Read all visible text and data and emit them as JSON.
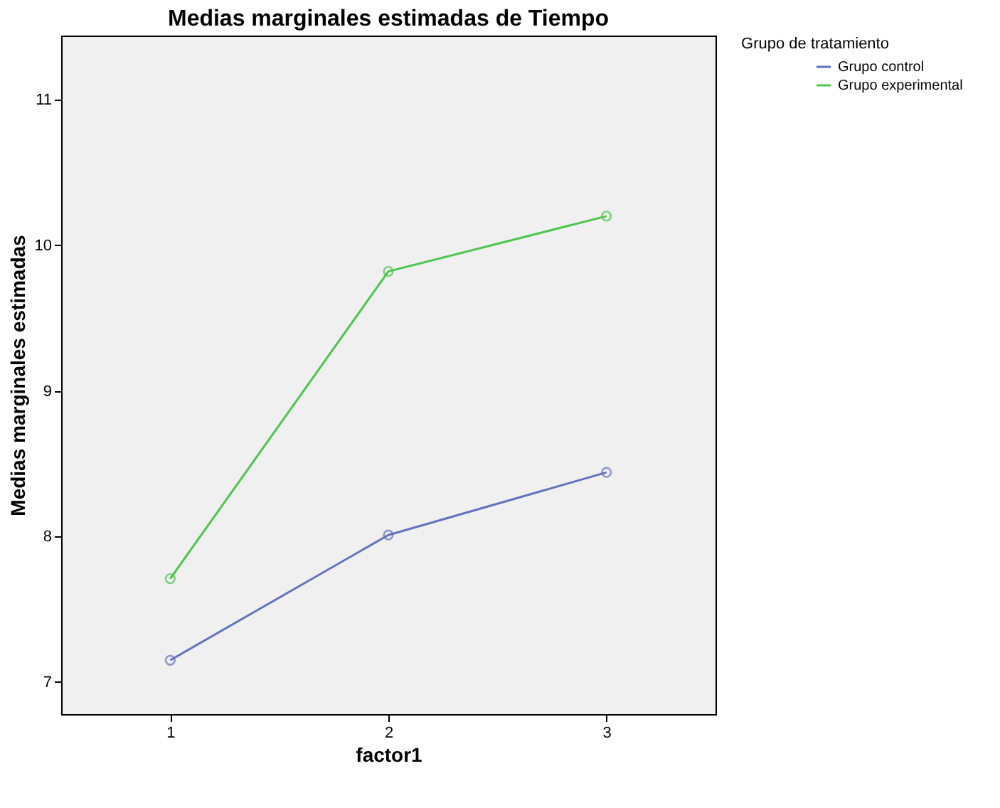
{
  "chart_data": {
    "type": "line",
    "title": "Medias marginales estimadas de Tiempo",
    "xlabel": "factor1",
    "ylabel": "Medias marginales estimadas",
    "legend_title": "Grupo de tratamiento",
    "categories": [
      "1",
      "2",
      "3"
    ],
    "series": [
      {
        "name": "Grupo control",
        "color": "#6272c0",
        "values": [
          7.15,
          8.01,
          8.44
        ]
      },
      {
        "name": "Grupo experimental",
        "color": "#4cc64c",
        "values": [
          7.71,
          9.82,
          10.2
        ]
      }
    ],
    "ylim": [
      6.78,
      11.44
    ],
    "yticks": [
      7,
      8,
      9,
      10,
      11
    ],
    "grid": false,
    "legend": "top right",
    "marker": "circle",
    "line_style": "solid"
  }
}
